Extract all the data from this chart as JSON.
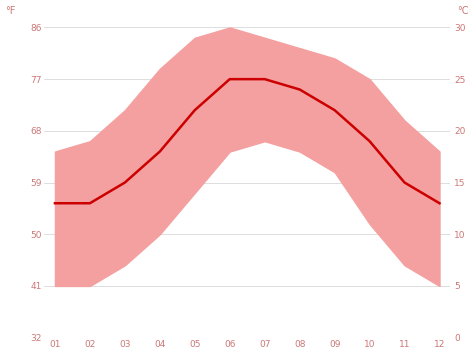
{
  "months": [
    1,
    2,
    3,
    4,
    5,
    6,
    7,
    8,
    9,
    10,
    11,
    12
  ],
  "month_labels": [
    "01",
    "02",
    "03",
    "04",
    "05",
    "06",
    "07",
    "08",
    "09",
    "10",
    "11",
    "12"
  ],
  "avg_temp": [
    13,
    13,
    15,
    18,
    22,
    25,
    25,
    24,
    22,
    19,
    15,
    13
  ],
  "max_temp": [
    18,
    19,
    22,
    26,
    29,
    30,
    29,
    28,
    27,
    25,
    21,
    18
  ],
  "min_temp": [
    5,
    5,
    7,
    10,
    14,
    18,
    19,
    18,
    16,
    11,
    7,
    5
  ],
  "ylim_c": [
    0,
    30
  ],
  "yticks_c": [
    0,
    5,
    10,
    15,
    20,
    25,
    30
  ],
  "yticks_f": [
    32,
    41,
    50,
    59,
    68,
    77,
    86
  ],
  "band_color": "#f4a0a0",
  "line_color": "#cc0000",
  "background_color": "#ffffff",
  "grid_color": "#d0d0d0",
  "label_color": "#cc7777",
  "figsize": [
    4.74,
    3.55
  ],
  "dpi": 100
}
